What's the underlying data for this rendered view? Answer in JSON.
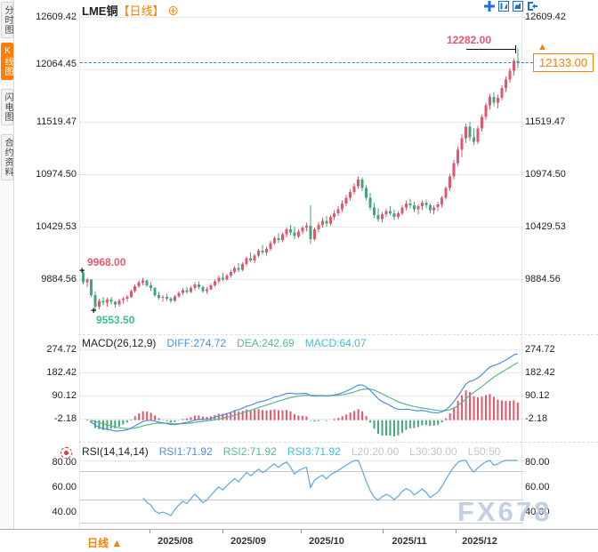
{
  "header": {
    "symbol": "LME铜",
    "period_tag": "【日线】",
    "add_icon": "⊕"
  },
  "sidebar": {
    "items": [
      {
        "label": "分时图",
        "active": false
      },
      {
        "label": "K线图",
        "active": true
      },
      {
        "label": "闪电图",
        "active": false
      },
      {
        "label": "合约资料",
        "active": false
      }
    ]
  },
  "toolbar": {
    "icons": [
      "crosshair",
      "axis-zoom",
      "time-zoom",
      "exit"
    ]
  },
  "price_axis": {
    "left": [
      "12609.42",
      "12064.45",
      "11519.47",
      "10974.50",
      "10429.53",
      "9884.56"
    ],
    "right": [
      "12609.42",
      "11519.47",
      "10974.50",
      "10429.53",
      "9884.56"
    ],
    "current_price": "12133.00"
  },
  "annotations": {
    "period_high": "12282.00",
    "swing_high": "9968.00",
    "swing_low": "9553.50",
    "marker": "+"
  },
  "macd_pane": {
    "title": "MACD(26,12,9)",
    "diff_label": "DIFF:274.72",
    "dea_label": "DEA:242.69",
    "macd_label": "MACD:64.07",
    "axis": [
      "274.72",
      "182.42",
      "90.12",
      "-2.18"
    ]
  },
  "rsi_pane": {
    "title": "RSI(14,14,14)",
    "rsi1_label": "RSI1:71.92",
    "rsi2_label": "RSI2:71.92",
    "rsi3_label": "RSI3:71.92",
    "l20_label": "L20:20.00",
    "l30_label": "L30:30.00",
    "l50_label": "L50:50",
    "axis": [
      "80.00",
      "60.00",
      "40.00"
    ]
  },
  "footer": {
    "period": "日线 ▲",
    "dates": [
      "2025/08",
      "2025/09",
      "2025/10",
      "2025/11",
      "2025/12"
    ]
  },
  "watermark": "FX678",
  "colors": {
    "up": "#e4566c",
    "down": "#3fa875",
    "accent_orange": "#ff7e00",
    "current_line": "#2e86de",
    "diff_line": "#4d8fe0",
    "dea_line": "#58b98c",
    "rsi_line": "#5aa6e8",
    "high_label": "#e8566d",
    "low_label": "#3fbe95",
    "icon_blue": "#1f6fd6",
    "watermark": "#bccbe0"
  },
  "chart_data": {
    "type": "candlestick",
    "symbol": "LME铜",
    "timeframe": "日线",
    "x_range": [
      "2025/07",
      "2025/12"
    ],
    "price_axis_ticks": [
      12609.42,
      12064.45,
      11519.47,
      10974.5,
      10429.53,
      9884.56
    ],
    "current_price": 12133.0,
    "period_high": 12282.0,
    "swing_high": 9968.0,
    "swing_low": 9553.5,
    "candles_format": [
      "open",
      "high",
      "low",
      "close"
    ],
    "candles": [
      [
        9950,
        9968,
        9830,
        9850
      ],
      [
        9850,
        9900,
        9800,
        9880
      ],
      [
        9880,
        9885,
        9700,
        9720
      ],
      [
        9720,
        9760,
        9553.5,
        9600
      ],
      [
        9600,
        9680,
        9570,
        9660
      ],
      [
        9660,
        9700,
        9610,
        9640
      ],
      [
        9640,
        9690,
        9600,
        9670
      ],
      [
        9670,
        9700,
        9620,
        9650
      ],
      [
        9650,
        9660,
        9590,
        9620
      ],
      [
        9620,
        9680,
        9600,
        9665
      ],
      [
        9665,
        9700,
        9630,
        9680
      ],
      [
        9680,
        9720,
        9650,
        9700
      ],
      [
        9700,
        9780,
        9690,
        9760
      ],
      [
        9760,
        9830,
        9740,
        9810
      ],
      [
        9810,
        9870,
        9790,
        9850
      ],
      [
        9850,
        9900,
        9820,
        9870
      ],
      [
        9870,
        9880,
        9800,
        9820
      ],
      [
        9820,
        9850,
        9760,
        9790
      ],
      [
        9790,
        9800,
        9700,
        9720
      ],
      [
        9720,
        9750,
        9670,
        9690
      ],
      [
        9690,
        9720,
        9650,
        9700
      ],
      [
        9700,
        9730,
        9660,
        9680
      ],
      [
        9680,
        9700,
        9640,
        9660
      ],
      [
        9660,
        9720,
        9650,
        9705
      ],
      [
        9705,
        9760,
        9690,
        9740
      ],
      [
        9740,
        9790,
        9720,
        9770
      ],
      [
        9770,
        9800,
        9730,
        9750
      ],
      [
        9750,
        9810,
        9740,
        9790
      ],
      [
        9790,
        9850,
        9770,
        9830
      ],
      [
        9830,
        9860,
        9780,
        9800
      ],
      [
        9800,
        9820,
        9740,
        9760
      ],
      [
        9760,
        9800,
        9730,
        9780
      ],
      [
        9780,
        9840,
        9770,
        9820
      ],
      [
        9820,
        9880,
        9800,
        9860
      ],
      [
        9860,
        9920,
        9840,
        9900
      ],
      [
        9900,
        9950,
        9860,
        9880
      ],
      [
        9880,
        9940,
        9870,
        9920
      ],
      [
        9920,
        9980,
        9900,
        9960
      ],
      [
        9960,
        10020,
        9940,
        10000
      ],
      [
        10000,
        10050,
        9960,
        9980
      ],
      [
        9980,
        10060,
        9970,
        10040
      ],
      [
        10040,
        10120,
        10020,
        10100
      ],
      [
        10100,
        10160,
        10060,
        10080
      ],
      [
        10080,
        10150,
        10050,
        10130
      ],
      [
        10130,
        10200,
        10110,
        10180
      ],
      [
        10180,
        10240,
        10140,
        10160
      ],
      [
        10160,
        10220,
        10130,
        10200
      ],
      [
        10200,
        10280,
        10180,
        10260
      ],
      [
        10260,
        10330,
        10240,
        10310
      ],
      [
        10310,
        10360,
        10260,
        10290
      ],
      [
        10290,
        10370,
        10270,
        10350
      ],
      [
        10350,
        10420,
        10320,
        10400
      ],
      [
        10400,
        10450,
        10340,
        10370
      ],
      [
        10370,
        10430,
        10300,
        10330
      ],
      [
        10330,
        10400,
        10310,
        10380
      ],
      [
        10380,
        10440,
        10350,
        10420
      ],
      [
        10420,
        10470,
        10380,
        10440
      ],
      [
        10440,
        10650,
        10250,
        10300
      ],
      [
        10300,
        10420,
        10280,
        10400
      ],
      [
        10400,
        10480,
        10370,
        10450
      ],
      [
        10450,
        10520,
        10420,
        10490
      ],
      [
        10490,
        10540,
        10430,
        10460
      ],
      [
        10460,
        10550,
        10440,
        10530
      ],
      [
        10530,
        10600,
        10500,
        10570
      ],
      [
        10570,
        10640,
        10540,
        10610
      ],
      [
        10610,
        10700,
        10580,
        10670
      ],
      [
        10670,
        10760,
        10640,
        10730
      ],
      [
        10730,
        10820,
        10700,
        10790
      ],
      [
        10790,
        10880,
        10760,
        10850
      ],
      [
        10850,
        10950,
        10820,
        10920
      ],
      [
        10920,
        10940,
        10800,
        10830
      ],
      [
        10830,
        10860,
        10700,
        10730
      ],
      [
        10730,
        10780,
        10600,
        10630
      ],
      [
        10630,
        10680,
        10520,
        10550
      ],
      [
        10550,
        10620,
        10480,
        10510
      ],
      [
        10510,
        10580,
        10470,
        10560
      ],
      [
        10560,
        10620,
        10530,
        10590
      ],
      [
        10590,
        10640,
        10550,
        10570
      ],
      [
        10570,
        10610,
        10500,
        10530
      ],
      [
        10530,
        10590,
        10510,
        10570
      ],
      [
        10570,
        10650,
        10550,
        10630
      ],
      [
        10630,
        10700,
        10600,
        10670
      ],
      [
        10670,
        10720,
        10620,
        10650
      ],
      [
        10650,
        10690,
        10580,
        10610
      ],
      [
        10610,
        10660,
        10560,
        10640
      ],
      [
        10640,
        10700,
        10600,
        10680
      ],
      [
        10680,
        10710,
        10620,
        10650
      ],
      [
        10650,
        10670,
        10570,
        10600
      ],
      [
        10600,
        10650,
        10560,
        10630
      ],
      [
        10630,
        10690,
        10590,
        10660
      ],
      [
        10660,
        10750,
        10630,
        10730
      ],
      [
        10730,
        10850,
        10710,
        10830
      ],
      [
        10830,
        10980,
        10800,
        10950
      ],
      [
        10950,
        11120,
        10920,
        11090
      ],
      [
        11090,
        11260,
        11060,
        11230
      ],
      [
        11230,
        11390,
        11150,
        11350
      ],
      [
        11350,
        11500,
        11300,
        11470
      ],
      [
        11470,
        11520,
        11320,
        11360
      ],
      [
        11360,
        11450,
        11280,
        11310
      ],
      [
        11310,
        11480,
        11290,
        11450
      ],
      [
        11450,
        11600,
        11420,
        11570
      ],
      [
        11570,
        11720,
        11540,
        11690
      ],
      [
        11690,
        11810,
        11650,
        11780
      ],
      [
        11780,
        11830,
        11680,
        11720
      ],
      [
        11720,
        11800,
        11660,
        11770
      ],
      [
        11770,
        11900,
        11740,
        11870
      ],
      [
        11870,
        11990,
        11830,
        11960
      ],
      [
        11960,
        12080,
        11920,
        12050
      ],
      [
        12050,
        12180,
        12000,
        12150
      ],
      [
        12150,
        12282,
        12080,
        12133
      ]
    ],
    "indicators": {
      "macd": {
        "params": [
          26,
          12,
          9
        ],
        "diff": 274.72,
        "dea": 242.69,
        "macd": 64.07,
        "axis_ticks": [
          274.72,
          182.42,
          90.12,
          -2.18
        ]
      },
      "rsi": {
        "params": [
          14,
          14,
          14
        ],
        "rsi1": 71.92,
        "rsi2": 71.92,
        "rsi3": 71.92,
        "levels": [
          20,
          30,
          50
        ],
        "axis_ticks": [
          80,
          60,
          40
        ]
      }
    }
  }
}
